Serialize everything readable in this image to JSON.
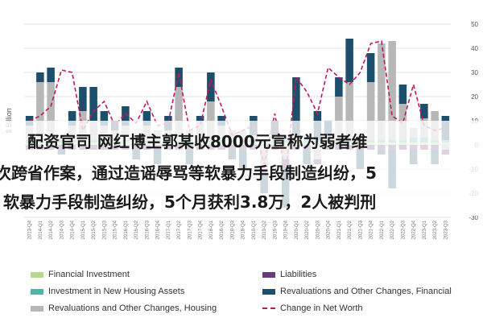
{
  "overlay": {
    "line1": "配资官司 网红博主郭某收8000元宣称为弱者维",
    "line2": "次跨省作案，通过造谣辱骂等软暴力手段制造纠纷，5",
    "line3": "软暴力手段制造纠纷，5个月获利3.8万，2人被判刑"
  },
  "chart_data": {
    "type": "bar",
    "ylabel": "$ Billion",
    "ylim": [
      -30,
      50
    ],
    "yticks": [
      -30,
      -20,
      -10,
      0,
      10,
      20,
      30,
      40,
      50
    ],
    "categories": [
      "2013-Q4",
      "2014-Q1",
      "2014-Q2",
      "2014-Q3",
      "2014-Q4",
      "2015-Q1",
      "2015-Q2",
      "2015-Q3",
      "2015-Q4",
      "2016-Q1",
      "2016-Q2",
      "2016-Q3",
      "2016-Q4",
      "2017-Q1",
      "2017-Q2",
      "2017-Q3",
      "2017-Q4",
      "2018-Q1",
      "2018-Q2",
      "2018-Q3",
      "2018-Q4",
      "2019-Q1",
      "2019-Q2",
      "2019-Q3",
      "2019-Q4",
      "2020-Q1",
      "2020-Q2",
      "2020-Q3",
      "2020-Q4",
      "2021-Q1",
      "2021-Q2",
      "2021-Q3",
      "2021-Q4",
      "2022-Q1",
      "2022-Q2",
      "2022-Q3",
      "2022-Q4",
      "2023-Q1",
      "2023-Q2",
      "2023-Q3"
    ],
    "series": [
      {
        "name": "Financial Investment",
        "color": "#b5d98f",
        "values": [
          1,
          1,
          1,
          1,
          1,
          1,
          1,
          1,
          1,
          1,
          1,
          1,
          1,
          1,
          1,
          1,
          1,
          1,
          1,
          1,
          1,
          1,
          1,
          1,
          1,
          1,
          1,
          1,
          1,
          1,
          1,
          1,
          1,
          1,
          1,
          1,
          1,
          1,
          1,
          1
        ]
      },
      {
        "name": "Investment in New Housing Assets",
        "color": "#4db6ac",
        "values": [
          1,
          1,
          1,
          1,
          1,
          1,
          1,
          1,
          1,
          1,
          1,
          1,
          1,
          1,
          1,
          1,
          1,
          1,
          1,
          1,
          1,
          1,
          1,
          1,
          1,
          1,
          1,
          1,
          1,
          1,
          1,
          1,
          1,
          1,
          1,
          1,
          2,
          2,
          1,
          1
        ]
      },
      {
        "name": "Revaluations and Other Changes, Housing",
        "color": "#b7b7b7",
        "values": [
          6,
          24,
          24,
          2,
          6,
          12,
          8,
          6,
          4,
          6,
          2,
          6,
          4,
          4,
          22,
          4,
          8,
          16,
          6,
          4,
          4,
          2,
          -10,
          2,
          -6,
          2,
          2,
          -6,
          2,
          18,
          24,
          2,
          24,
          40,
          41,
          15,
          4,
          8,
          12,
          -2
        ]
      },
      {
        "name": "Liabilities",
        "color": "#6a3a7a",
        "values": [
          -2,
          -2,
          -2,
          -2,
          -2,
          -2,
          -2,
          -2,
          -2,
          -2,
          -2,
          -2,
          -2,
          -2,
          -2,
          -2,
          -2,
          -2,
          -2,
          -2,
          -2,
          -2,
          -2,
          -2,
          -2,
          -2,
          -2,
          -2,
          -2,
          -2,
          -2,
          -2,
          -2,
          -2,
          -2,
          -2,
          -2,
          -2,
          -2,
          -2
        ]
      },
      {
        "name": "Revaluations and Other Changes, Financial",
        "color": "#1d4e6b",
        "values": [
          4,
          4,
          6,
          -2,
          6,
          10,
          14,
          6,
          4,
          8,
          -4,
          6,
          -6,
          6,
          8,
          -6,
          2,
          12,
          4,
          -4,
          -8,
          8,
          -8,
          6,
          -18,
          24,
          -6,
          12,
          6,
          8,
          18,
          -8,
          12,
          -2,
          -16,
          8,
          -6,
          6,
          -6,
          10
        ]
      }
    ],
    "line": {
      "name": "Change in Net Worth",
      "color": "#c2185b",
      "values": [
        10,
        12,
        16,
        31,
        30,
        6,
        14,
        18,
        8,
        13,
        9,
        18,
        8,
        9,
        30,
        6,
        8,
        27,
        16,
        4,
        6,
        8,
        -8,
        13,
        -12,
        28,
        22,
        13,
        32,
        28,
        25,
        30,
        42,
        43,
        12,
        9,
        25,
        8,
        6,
        7
      ]
    },
    "legend": [
      {
        "label": "Financial Investment",
        "kind": "swatch",
        "color": "#b5d98f"
      },
      {
        "label": "Liabilities",
        "kind": "swatch",
        "color": "#6a3a7a"
      },
      {
        "label": "Investment in New Housing Assets",
        "kind": "swatch",
        "color": "#4db6ac"
      },
      {
        "label": "Revaluations and Other Changes, Financial",
        "kind": "swatch",
        "color": "#1d4e6b"
      },
      {
        "label": "Revaluations and Other Changes, Housing",
        "kind": "swatch",
        "color": "#b7b7b7"
      },
      {
        "label": "Change in Net Worth",
        "kind": "dash",
        "color": "#c2185b"
      }
    ],
    "grid": true,
    "legend_position": "bottom"
  }
}
